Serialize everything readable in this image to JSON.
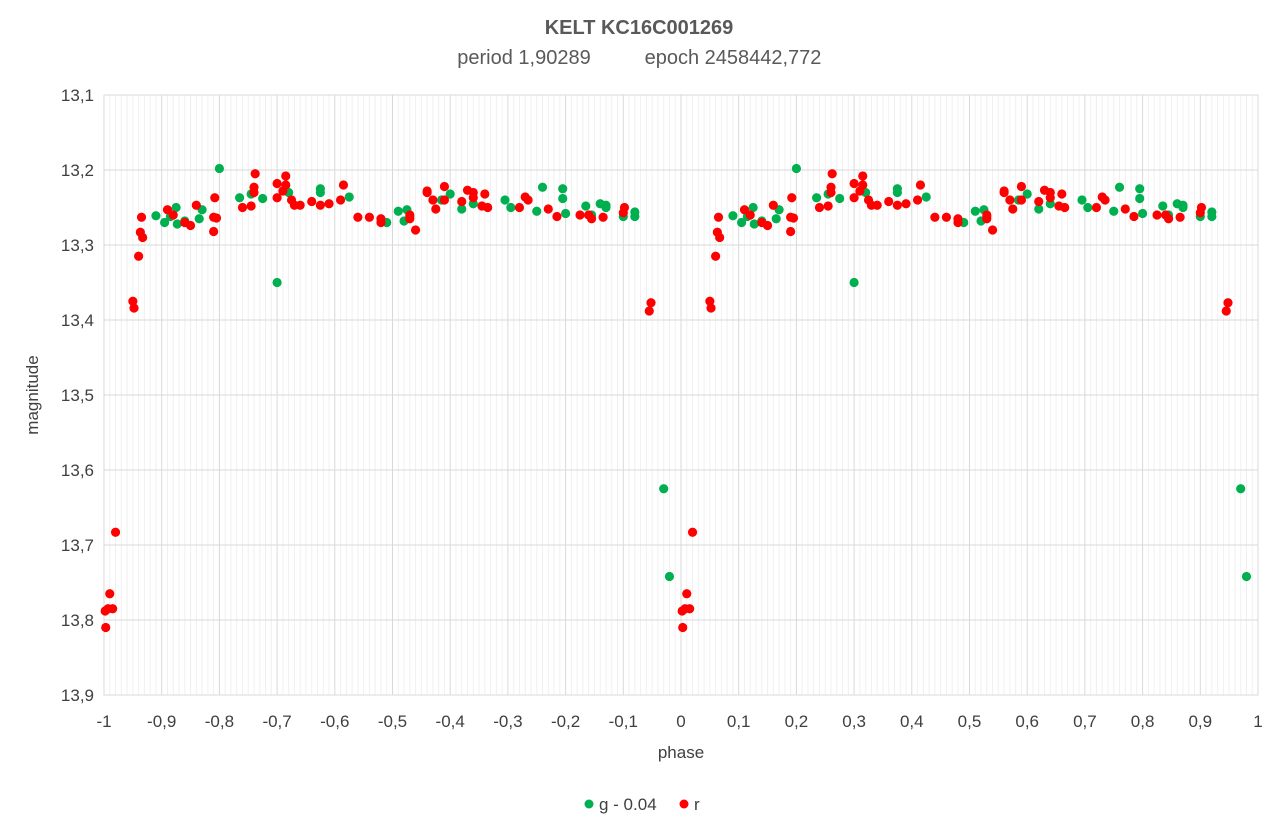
{
  "chart_data": {
    "type": "scatter",
    "title": "KELT KC16C001269",
    "subtitle": {
      "period": "period 1,90289",
      "epoch": "epoch 2458442,772"
    },
    "xlabel": "phase",
    "ylabel": "magnitude",
    "xlim": [
      -1,
      1
    ],
    "ylim": [
      13.1,
      13.9
    ],
    "y_inverted": true,
    "x_ticks": [
      "-1",
      "-0,9",
      "-0,8",
      "-0,7",
      "-0,6",
      "-0,5",
      "-0,4",
      "-0,3",
      "-0,2",
      "-0,1",
      "0",
      "0,1",
      "0,2",
      "0,3",
      "0,4",
      "0,5",
      "0,6",
      "0,7",
      "0,8",
      "0,9",
      "1"
    ],
    "y_ticks": [
      "13,1",
      "13,2",
      "13,3",
      "13,4",
      "13,5",
      "13,6",
      "13,7",
      "13,8",
      "13,9"
    ],
    "grid": true,
    "legend_position": "bottom",
    "series": [
      {
        "name": "g - 0.04",
        "color": "#00b050",
        "points": [
          [
            -0.91,
            13.261
          ],
          [
            -0.895,
            13.27
          ],
          [
            -0.885,
            13.262
          ],
          [
            -0.875,
            13.25
          ],
          [
            -0.873,
            13.272
          ],
          [
            -0.86,
            13.268
          ],
          [
            -0.835,
            13.265
          ],
          [
            -0.83,
            13.253
          ],
          [
            -0.8,
            13.198
          ],
          [
            -0.765,
            13.237
          ],
          [
            -0.745,
            13.232
          ],
          [
            -0.725,
            13.238
          ],
          [
            -0.7,
            13.35
          ],
          [
            -0.68,
            13.23
          ],
          [
            -0.625,
            13.225
          ],
          [
            -0.625,
            13.23
          ],
          [
            -0.575,
            13.236
          ],
          [
            -0.51,
            13.27
          ],
          [
            -0.49,
            13.255
          ],
          [
            -0.48,
            13.268
          ],
          [
            -0.475,
            13.253
          ],
          [
            -0.47,
            13.262
          ],
          [
            -0.415,
            13.24
          ],
          [
            -0.4,
            13.232
          ],
          [
            -0.38,
            13.252
          ],
          [
            -0.36,
            13.245
          ],
          [
            -0.305,
            13.24
          ],
          [
            -0.295,
            13.25
          ],
          [
            -0.25,
            13.255
          ],
          [
            -0.24,
            13.223
          ],
          [
            -0.205,
            13.238
          ],
          [
            -0.205,
            13.225
          ],
          [
            -0.2,
            13.258
          ],
          [
            -0.165,
            13.248
          ],
          [
            -0.155,
            13.26
          ],
          [
            -0.14,
            13.245
          ],
          [
            -0.13,
            13.25
          ],
          [
            -0.13,
            13.247
          ],
          [
            -0.1,
            13.262
          ],
          [
            -0.08,
            13.256
          ],
          [
            -0.08,
            13.262
          ],
          [
            -0.03,
            13.625
          ],
          [
            -0.02,
            13.742
          ],
          [
            0.09,
            13.261
          ],
          [
            0.105,
            13.27
          ],
          [
            0.115,
            13.262
          ],
          [
            0.125,
            13.25
          ],
          [
            0.127,
            13.272
          ],
          [
            0.14,
            13.268
          ],
          [
            0.165,
            13.265
          ],
          [
            0.17,
            13.253
          ],
          [
            0.2,
            13.198
          ],
          [
            0.235,
            13.237
          ],
          [
            0.255,
            13.232
          ],
          [
            0.275,
            13.238
          ],
          [
            0.3,
            13.35
          ],
          [
            0.32,
            13.23
          ],
          [
            0.375,
            13.225
          ],
          [
            0.375,
            13.23
          ],
          [
            0.425,
            13.236
          ],
          [
            0.49,
            13.27
          ],
          [
            0.51,
            13.255
          ],
          [
            0.52,
            13.268
          ],
          [
            0.525,
            13.253
          ],
          [
            0.53,
            13.262
          ],
          [
            0.585,
            13.24
          ],
          [
            0.6,
            13.232
          ],
          [
            0.62,
            13.252
          ],
          [
            0.64,
            13.245
          ],
          [
            0.695,
            13.24
          ],
          [
            0.705,
            13.25
          ],
          [
            0.75,
            13.255
          ],
          [
            0.76,
            13.223
          ],
          [
            0.795,
            13.238
          ],
          [
            0.795,
            13.225
          ],
          [
            0.8,
            13.258
          ],
          [
            0.835,
            13.248
          ],
          [
            0.845,
            13.26
          ],
          [
            0.86,
            13.245
          ],
          [
            0.87,
            13.25
          ],
          [
            0.87,
            13.247
          ],
          [
            0.9,
            13.262
          ],
          [
            0.92,
            13.256
          ],
          [
            0.92,
            13.262
          ],
          [
            0.97,
            13.625
          ],
          [
            0.98,
            13.742
          ]
        ]
      },
      {
        "name": "r",
        "color": "#ff0000",
        "points": [
          [
            -0.998,
            13.788
          ],
          [
            -0.997,
            13.81
          ],
          [
            -0.993,
            13.785
          ],
          [
            -0.99,
            13.765
          ],
          [
            -0.985,
            13.785
          ],
          [
            -0.98,
            13.683
          ],
          [
            -0.95,
            13.375
          ],
          [
            -0.948,
            13.384
          ],
          [
            -0.94,
            13.315
          ],
          [
            -0.937,
            13.283
          ],
          [
            -0.935,
            13.263
          ],
          [
            -0.933,
            13.29
          ],
          [
            -0.89,
            13.253
          ],
          [
            -0.88,
            13.26
          ],
          [
            -0.86,
            13.27
          ],
          [
            -0.85,
            13.274
          ],
          [
            -0.84,
            13.247
          ],
          [
            -0.81,
            13.282
          ],
          [
            -0.81,
            13.263
          ],
          [
            -0.808,
            13.237
          ],
          [
            -0.805,
            13.264
          ],
          [
            -0.76,
            13.25
          ],
          [
            -0.745,
            13.248
          ],
          [
            -0.74,
            13.23
          ],
          [
            -0.74,
            13.223
          ],
          [
            -0.738,
            13.205
          ],
          [
            -0.7,
            13.218
          ],
          [
            -0.7,
            13.237
          ],
          [
            -0.69,
            13.228
          ],
          [
            -0.685,
            13.22
          ],
          [
            -0.685,
            13.208
          ],
          [
            -0.675,
            13.24
          ],
          [
            -0.67,
            13.247
          ],
          [
            -0.66,
            13.247
          ],
          [
            -0.64,
            13.242
          ],
          [
            -0.625,
            13.247
          ],
          [
            -0.61,
            13.245
          ],
          [
            -0.59,
            13.24
          ],
          [
            -0.585,
            13.22
          ],
          [
            -0.56,
            13.263
          ],
          [
            -0.54,
            13.263
          ],
          [
            -0.52,
            13.265
          ],
          [
            -0.52,
            13.27
          ],
          [
            -0.47,
            13.265
          ],
          [
            -0.47,
            13.26
          ],
          [
            -0.46,
            13.28
          ],
          [
            -0.44,
            13.23
          ],
          [
            -0.44,
            13.228
          ],
          [
            -0.43,
            13.24
          ],
          [
            -0.425,
            13.252
          ],
          [
            -0.41,
            13.222
          ],
          [
            -0.41,
            13.24
          ],
          [
            -0.38,
            13.242
          ],
          [
            -0.37,
            13.227
          ],
          [
            -0.36,
            13.23
          ],
          [
            -0.36,
            13.237
          ],
          [
            -0.345,
            13.248
          ],
          [
            -0.34,
            13.232
          ],
          [
            -0.335,
            13.25
          ],
          [
            -0.28,
            13.25
          ],
          [
            -0.27,
            13.236
          ],
          [
            -0.265,
            13.24
          ],
          [
            -0.23,
            13.252
          ],
          [
            -0.215,
            13.262
          ],
          [
            -0.175,
            13.26
          ],
          [
            -0.16,
            13.26
          ],
          [
            -0.155,
            13.265
          ],
          [
            -0.135,
            13.263
          ],
          [
            -0.1,
            13.257
          ],
          [
            -0.098,
            13.25
          ],
          [
            -0.055,
            13.388
          ],
          [
            -0.052,
            13.377
          ],
          [
            0.002,
            13.788
          ],
          [
            0.003,
            13.81
          ],
          [
            0.007,
            13.785
          ],
          [
            0.01,
            13.765
          ],
          [
            0.015,
            13.785
          ],
          [
            0.02,
            13.683
          ],
          [
            0.05,
            13.375
          ],
          [
            0.052,
            13.384
          ],
          [
            0.06,
            13.315
          ],
          [
            0.063,
            13.283
          ],
          [
            0.065,
            13.263
          ],
          [
            0.067,
            13.29
          ],
          [
            0.11,
            13.253
          ],
          [
            0.12,
            13.26
          ],
          [
            0.14,
            13.27
          ],
          [
            0.15,
            13.274
          ],
          [
            0.16,
            13.247
          ],
          [
            0.19,
            13.282
          ],
          [
            0.19,
            13.263
          ],
          [
            0.192,
            13.237
          ],
          [
            0.195,
            13.264
          ],
          [
            0.24,
            13.25
          ],
          [
            0.255,
            13.248
          ],
          [
            0.26,
            13.23
          ],
          [
            0.26,
            13.223
          ],
          [
            0.262,
            13.205
          ],
          [
            0.3,
            13.218
          ],
          [
            0.3,
            13.237
          ],
          [
            0.31,
            13.228
          ],
          [
            0.315,
            13.22
          ],
          [
            0.315,
            13.208
          ],
          [
            0.325,
            13.24
          ],
          [
            0.33,
            13.247
          ],
          [
            0.34,
            13.247
          ],
          [
            0.36,
            13.242
          ],
          [
            0.375,
            13.247
          ],
          [
            0.39,
            13.245
          ],
          [
            0.41,
            13.24
          ],
          [
            0.415,
            13.22
          ],
          [
            0.44,
            13.263
          ],
          [
            0.46,
            13.263
          ],
          [
            0.48,
            13.265
          ],
          [
            0.48,
            13.27
          ],
          [
            0.53,
            13.265
          ],
          [
            0.53,
            13.26
          ],
          [
            0.54,
            13.28
          ],
          [
            0.56,
            13.23
          ],
          [
            0.56,
            13.228
          ],
          [
            0.57,
            13.24
          ],
          [
            0.575,
            13.252
          ],
          [
            0.59,
            13.222
          ],
          [
            0.59,
            13.24
          ],
          [
            0.62,
            13.242
          ],
          [
            0.63,
            13.227
          ],
          [
            0.64,
            13.23
          ],
          [
            0.64,
            13.237
          ],
          [
            0.655,
            13.248
          ],
          [
            0.66,
            13.232
          ],
          [
            0.665,
            13.25
          ],
          [
            0.72,
            13.25
          ],
          [
            0.73,
            13.236
          ],
          [
            0.735,
            13.24
          ],
          [
            0.77,
            13.252
          ],
          [
            0.785,
            13.262
          ],
          [
            0.825,
            13.26
          ],
          [
            0.84,
            13.26
          ],
          [
            0.845,
            13.265
          ],
          [
            0.865,
            13.263
          ],
          [
            0.9,
            13.257
          ],
          [
            0.902,
            13.25
          ],
          [
            0.945,
            13.388
          ],
          [
            0.948,
            13.377
          ]
        ]
      }
    ]
  }
}
